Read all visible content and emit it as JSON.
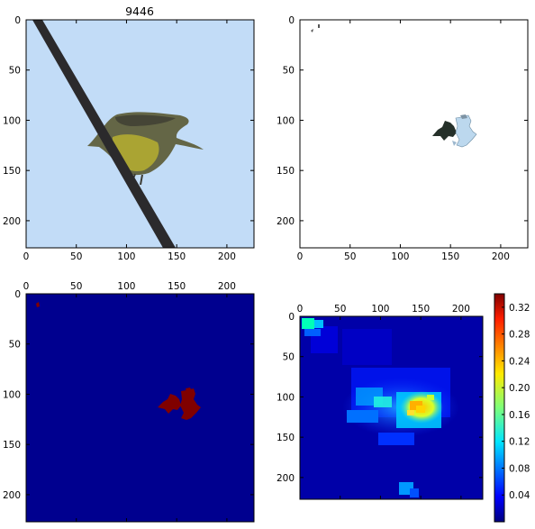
{
  "figure": {
    "panels": [
      {
        "id": "photo",
        "title": "9446",
        "xticks": [
          "0",
          "50",
          "100",
          "150",
          "200"
        ],
        "yticks": [
          "0",
          "50",
          "100",
          "150",
          "200"
        ],
        "x_tick_values": [
          0,
          50,
          100,
          150,
          200
        ],
        "y_tick_values": [
          0,
          50,
          100,
          150,
          200
        ],
        "xlim": [
          0,
          227
        ],
        "ylim": [
          227,
          0
        ],
        "sky_color": "#c2dcf7",
        "bird_colors": {
          "back": "#5b5a3f",
          "belly": "#a59d2f",
          "wire": "#2b2a2c"
        }
      },
      {
        "id": "segment-mask",
        "title": "",
        "xticks": [
          "0",
          "50",
          "100",
          "150",
          "200"
        ],
        "yticks": [
          "0",
          "50",
          "100",
          "150",
          "200"
        ],
        "x_tick_values": [
          0,
          50,
          100,
          150,
          200
        ],
        "y_tick_values": [
          0,
          50,
          100,
          150,
          200
        ],
        "xlim": [
          0,
          227
        ],
        "ylim": [
          227,
          0
        ],
        "background": "#ffffff"
      },
      {
        "id": "binary-mask",
        "title": "",
        "xticks": [
          "0",
          "50",
          "100",
          "150",
          "200"
        ],
        "yticks": [
          "0",
          "50",
          "100",
          "150",
          "200"
        ],
        "x_tick_values": [
          0,
          50,
          100,
          150,
          200
        ],
        "y_tick_values": [
          0,
          50,
          100,
          150,
          200
        ],
        "xlim": [
          0,
          227
        ],
        "ylim": [
          227,
          0
        ],
        "background": "#00008f",
        "mask_color": "#800000"
      },
      {
        "id": "heatmap",
        "title": "",
        "xticks": [
          "0",
          "50",
          "100",
          "150",
          "200"
        ],
        "yticks": [
          "0",
          "50",
          "100",
          "150",
          "200"
        ],
        "x_tick_values": [
          0,
          50,
          100,
          150,
          200
        ],
        "y_tick_values": [
          0,
          50,
          100,
          150,
          200
        ],
        "xlim": [
          0,
          227
        ],
        "ylim": [
          227,
          0
        ],
        "background": "#0000a8"
      }
    ],
    "colorbar": {
      "ticks": [
        "0.04",
        "0.08",
        "0.12",
        "0.16",
        "0.20",
        "0.24",
        "0.28",
        "0.32"
      ],
      "tick_values": [
        0.04,
        0.08,
        0.12,
        0.16,
        0.2,
        0.24,
        0.28,
        0.32
      ],
      "range": [
        0.0,
        0.34
      ],
      "colormap": "jet"
    }
  },
  "chart_data": [
    {
      "type": "image",
      "title": "9446",
      "xlabel": "",
      "ylabel": "",
      "xlim": [
        0,
        227
      ],
      "ylim": [
        227,
        0
      ],
      "content": "photograph of a bird perched on a diagonal wire against a pale blue sky"
    },
    {
      "type": "image",
      "title": "",
      "xlim": [
        0,
        227
      ],
      "ylim": [
        227,
        0
      ],
      "content": "segmented superpixels of the bird on white background",
      "regions": [
        {
          "x_range": [
            135,
            150
          ],
          "y_range": [
            105,
            120
          ],
          "color": "#25302a"
        },
        {
          "x_range": [
            150,
            175
          ],
          "y_range": [
            95,
            130
          ],
          "color": "#b7d4ec"
        },
        {
          "x_range": [
            10,
            22
          ],
          "y_range": [
            0,
            10
          ],
          "color": "#555555"
        }
      ]
    },
    {
      "type": "heatmap",
      "title": "",
      "xlim": [
        0,
        227
      ],
      "ylim": [
        227,
        0
      ],
      "values_shown": [
        0,
        1
      ],
      "regions": [
        {
          "x_range": [
            132,
            172
          ],
          "y_range": [
            95,
            130
          ],
          "value": 1
        },
        {
          "x_range": [
            9,
            14
          ],
          "y_range": [
            8,
            14
          ],
          "value": 1
        }
      ]
    },
    {
      "type": "heatmap",
      "title": "",
      "xlim": [
        0,
        227
      ],
      "ylim": [
        227,
        0
      ],
      "colorbar_range": [
        0.0,
        0.34
      ],
      "regions": [
        {
          "x_range": [
            0,
            18
          ],
          "y_range": [
            0,
            18
          ],
          "value": 0.14
        },
        {
          "x_range": [
            55,
            120
          ],
          "y_range": [
            15,
            60
          ],
          "value": 0.06
        },
        {
          "x_range": [
            60,
            175
          ],
          "y_range": [
            90,
            135
          ],
          "value": 0.1
        },
        {
          "x_range": [
            95,
            115
          ],
          "y_range": [
            95,
            115
          ],
          "value": 0.12
        },
        {
          "x_range": [
            135,
            165
          ],
          "y_range": [
            93,
            125
          ],
          "value": 0.22
        },
        {
          "x_range": [
            137,
            158
          ],
          "y_range": [
            103,
            123
          ],
          "value": 0.26
        },
        {
          "x_range": [
            135,
            150
          ],
          "y_range": [
            107,
            120
          ],
          "value": 0.3
        },
        {
          "x_range": [
            100,
            130
          ],
          "y_range": [
            140,
            160
          ],
          "value": 0.05
        },
        {
          "x_range": [
            120,
            145
          ],
          "y_range": [
            205,
            222
          ],
          "value": 0.1
        }
      ]
    }
  ]
}
